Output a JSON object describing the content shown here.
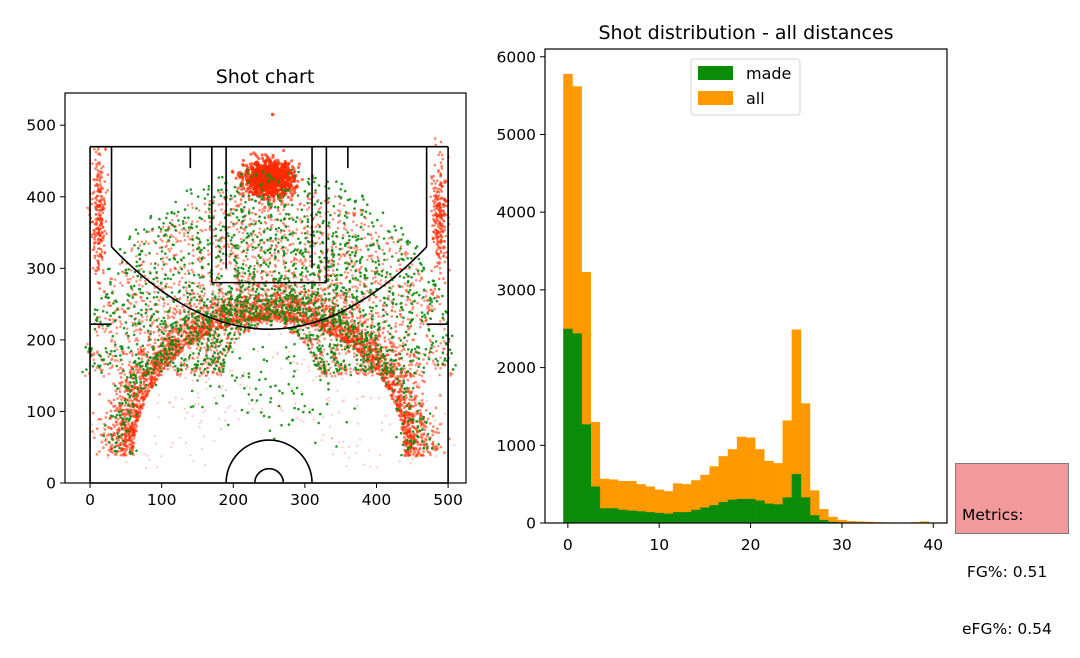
{
  "chart_data": [
    {
      "type": "scatter",
      "title": "Shot chart",
      "xlabel": "",
      "ylabel": "",
      "xlim": [
        -35,
        525
      ],
      "ylim": [
        0,
        545
      ],
      "xticks": [
        0,
        100,
        200,
        300,
        400,
        500
      ],
      "yticks": [
        0,
        100,
        200,
        300,
        400,
        500
      ],
      "series": [
        {
          "name": "all",
          "color": "#ff2a00"
        },
        {
          "name": "made",
          "color": "#118c11"
        }
      ],
      "court": {
        "baseline_y": 0,
        "court_length_y": 470,
        "court_width_x": [
          0,
          500
        ],
        "basket": [
          250,
          19
        ],
        "restricted_radius": 17,
        "arc_radius": 60,
        "three_point_radius": 238,
        "corner_line_x": [
          30,
          470
        ],
        "corner_line_y": 222,
        "key_x": [
          170,
          330
        ],
        "free_throw_y": 280,
        "free_throw_radius": 60,
        "wing_line_y": 222
      }
    },
    {
      "type": "bar",
      "title": "Shot distribution - all distances",
      "xlabel": "",
      "ylabel": "",
      "xlim": [
        -2.5,
        41.5
      ],
      "ylim": [
        0,
        6100
      ],
      "xticks": [
        0,
        10,
        20,
        30,
        40
      ],
      "yticks": [
        0,
        1000,
        2000,
        3000,
        4000,
        5000,
        6000
      ],
      "bin_start": -0.5,
      "bin_width": 1,
      "legend_location": "upper-center",
      "series": [
        {
          "name": "all",
          "color": "#ff9900",
          "values": [
            5780,
            5620,
            3230,
            1300,
            570,
            560,
            540,
            540,
            500,
            470,
            430,
            410,
            510,
            500,
            550,
            620,
            730,
            860,
            950,
            1110,
            1100,
            950,
            800,
            770,
            1320,
            2490,
            1540,
            420,
            180,
            80,
            40,
            25,
            20,
            15,
            10,
            8,
            6,
            5,
            10,
            20
          ]
        },
        {
          "name": "made",
          "color": "#0a8c0a",
          "values": [
            2500,
            2440,
            1270,
            470,
            190,
            190,
            170,
            160,
            150,
            140,
            130,
            120,
            140,
            140,
            170,
            200,
            230,
            270,
            300,
            310,
            310,
            290,
            250,
            240,
            330,
            630,
            330,
            100,
            40,
            15,
            8,
            5,
            4,
            3,
            2,
            2,
            1,
            1,
            2,
            4
          ]
        }
      ]
    }
  ],
  "metrics": {
    "heading": "Metrics:",
    "fg": " FG%: 0.51",
    "efg": "eFG%: 0.54"
  }
}
